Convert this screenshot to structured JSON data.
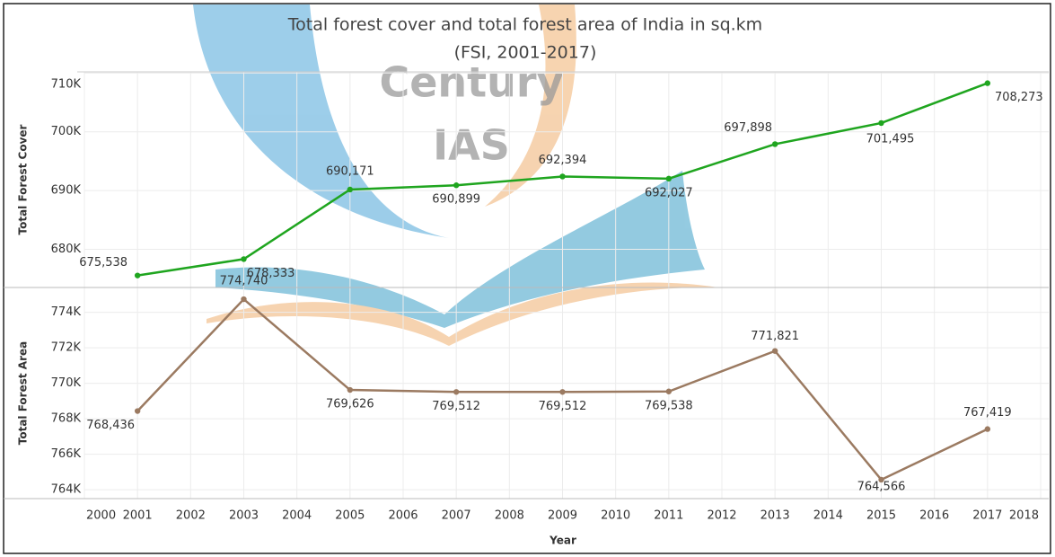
{
  "chart_data": {
    "type": "line",
    "title": "Total forest cover and total forest area of India in sq.km",
    "subtitle": "(FSI, 2001-2017)",
    "watermark": [
      "Century",
      "IAS"
    ],
    "xlabel": "Year",
    "x": [
      2001,
      2003,
      2005,
      2007,
      2009,
      2011,
      2013,
      2015,
      2017
    ],
    "xlim": [
      2000,
      2018
    ],
    "xticks": [
      2000,
      2001,
      2002,
      2003,
      2004,
      2005,
      2006,
      2007,
      2008,
      2009,
      2010,
      2011,
      2012,
      2013,
      2014,
      2015,
      2016,
      2017,
      2018
    ],
    "grid": true,
    "panels": [
      {
        "ylabel": "Total Forest Cover",
        "color": "#1fa51f",
        "ylim": [
          673500,
          710200
        ],
        "yticks": [
          {
            "value": 680000,
            "label": "680K"
          },
          {
            "value": 690000,
            "label": "690K"
          },
          {
            "value": 700000,
            "label": "700K"
          },
          {
            "value": 710000,
            "label": "710K"
          }
        ],
        "values": [
          675538,
          678333,
          690171,
          690899,
          692394,
          692027,
          697898,
          701495,
          708273
        ],
        "value_labels": [
          "675,538",
          "678,333",
          "690,171",
          "690,899",
          "692,394",
          "692,027",
          "697,898",
          "701,495",
          "708,273"
        ]
      },
      {
        "ylabel": "Total Forest Area",
        "color": "#9b7a61",
        "ylim": [
          763500,
          775400
        ],
        "yticks": [
          {
            "value": 764000,
            "label": "764K"
          },
          {
            "value": 766000,
            "label": "766K"
          },
          {
            "value": 768000,
            "label": "768K"
          },
          {
            "value": 770000,
            "label": "770K"
          },
          {
            "value": 772000,
            "label": "772K"
          },
          {
            "value": 774000,
            "label": "774K"
          }
        ],
        "values": [
          768436,
          774740,
          769626,
          769512,
          769512,
          769538,
          771821,
          764566,
          767419
        ],
        "value_labels": [
          "768,436",
          "774,740",
          "769,626",
          "769,512",
          "769,512",
          "769,538",
          "771,821",
          "764,566",
          "767,419"
        ]
      }
    ]
  }
}
